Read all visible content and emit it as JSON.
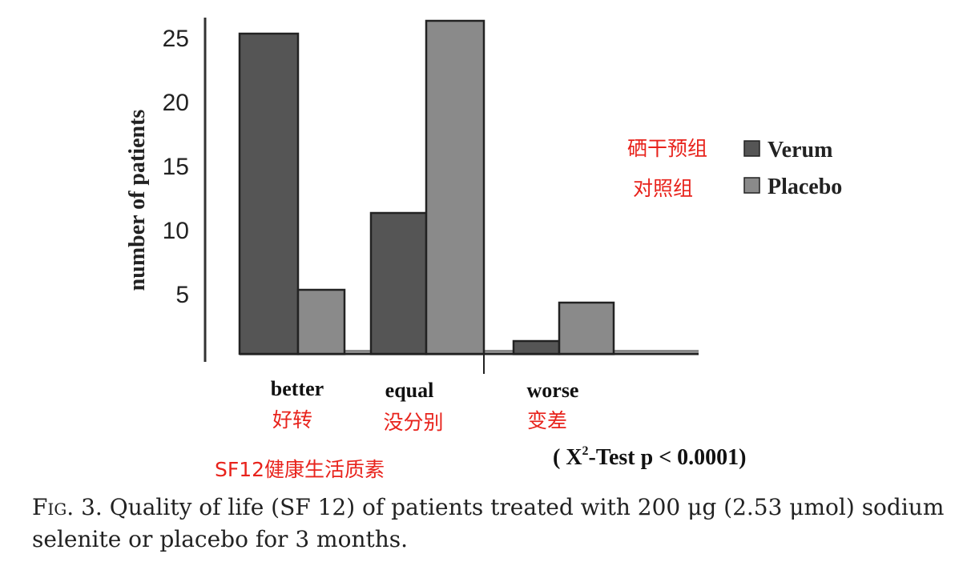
{
  "chart_data": {
    "type": "bar",
    "categories": [
      "better",
      "equal",
      "worse"
    ],
    "category_annotations": [
      "好转",
      "没分别",
      "变差"
    ],
    "series": [
      {
        "name": "Verum",
        "annotation": "硒干预组",
        "color": "#555555",
        "values": [
          25,
          11,
          1
        ]
      },
      {
        "name": "Placebo",
        "annotation": "对照组",
        "color": "#8a8a8a",
        "values": [
          5,
          26,
          4
        ]
      }
    ],
    "ylabel": "number of patients",
    "yticks": [
      5,
      10,
      15,
      20,
      25
    ],
    "ylim": [
      0,
      27
    ],
    "legend_position": "right",
    "grid": false,
    "xlabel_annotation": "SF12健康生活质素",
    "test_annotation": {
      "open": "( X",
      "sup": "2",
      "rest": "-Test p < 0.0001)"
    }
  },
  "caption": {
    "fig": "Fig. 3.",
    "text": "Quality of life (SF 12) of patients treated with 200 μg (2.53 μmol) sodium selenite or placebo for 3 months."
  }
}
